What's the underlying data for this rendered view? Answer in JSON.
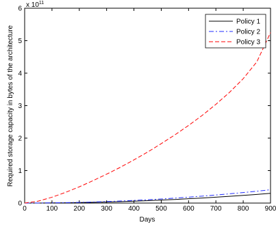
{
  "chart_data": {
    "type": "line",
    "title": "",
    "xlabel": "Days",
    "ylabel": "Required storage capacity in bytes of the architecture",
    "xlim": [
      0,
      900
    ],
    "ylim": [
      0,
      6
    ],
    "y_multiplier_label": "x 10",
    "y_multiplier_exponent": "11",
    "xticks": [
      "0",
      "100",
      "200",
      "300",
      "400",
      "500",
      "600",
      "700",
      "800",
      "900"
    ],
    "yticks": [
      "0",
      "1",
      "2",
      "3",
      "4",
      "5",
      "6"
    ],
    "grid": false,
    "legend_position": "top-right",
    "x": [
      0,
      50,
      100,
      150,
      200,
      250,
      300,
      350,
      400,
      450,
      500,
      550,
      600,
      650,
      700,
      750,
      800,
      850,
      900
    ],
    "series": [
      {
        "name": "Policy 1",
        "color": "#000000",
        "dash": "solid",
        "values": [
          0,
          0.001,
          0.004,
          0.008,
          0.015,
          0.023,
          0.033,
          0.045,
          0.059,
          0.075,
          0.092,
          0.111,
          0.133,
          0.156,
          0.181,
          0.207,
          0.236,
          0.266,
          0.3
        ]
      },
      {
        "name": "Policy 2",
        "color": "#1f2bff",
        "dash": "dash-dot",
        "values": [
          0,
          0.002,
          0.006,
          0.012,
          0.021,
          0.032,
          0.046,
          0.062,
          0.081,
          0.102,
          0.126,
          0.153,
          0.182,
          0.214,
          0.248,
          0.285,
          0.324,
          0.366,
          0.41
        ]
      },
      {
        "name": "Policy 3",
        "color": "#ff0000",
        "dash": "dashed",
        "values": [
          0,
          0.06,
          0.18,
          0.33,
          0.5,
          0.69,
          0.89,
          1.1,
          1.33,
          1.57,
          1.83,
          2.1,
          2.39,
          2.7,
          3.04,
          3.41,
          3.83,
          4.35,
          5.25
        ]
      }
    ]
  }
}
